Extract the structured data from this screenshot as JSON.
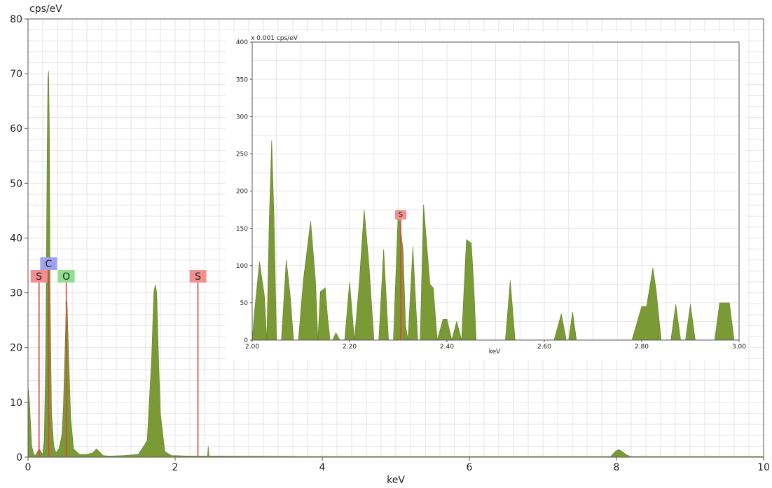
{
  "chart_data": [
    {
      "type": "area",
      "ylabel": "cps/eV",
      "xlabel": "keV",
      "xlim": [
        0,
        10
      ],
      "ylim": [
        0,
        80
      ],
      "x_ticks": [
        0,
        2,
        4,
        6,
        8,
        10
      ],
      "y_ticks": [
        0,
        10,
        20,
        30,
        40,
        50,
        60,
        70,
        80
      ],
      "grid": true,
      "series": [
        {
          "x": [
            0.0,
            0.02,
            0.05,
            0.08,
            0.1,
            0.15,
            0.2,
            0.22,
            0.24,
            0.26,
            0.27,
            0.28,
            0.29,
            0.3,
            0.32,
            0.35,
            0.38,
            0.42,
            0.46,
            0.48,
            0.5,
            0.52,
            0.53,
            0.55,
            0.58,
            0.62,
            0.7,
            0.8,
            0.88,
            0.93,
            0.97,
            1.02,
            1.1,
            1.3,
            1.5,
            1.62,
            1.68,
            1.71,
            1.73,
            1.75,
            1.77,
            1.8,
            1.86,
            1.95,
            2.2,
            2.44,
            2.45,
            2.46,
            2.6,
            4.0,
            6.0,
            7.92,
            7.98,
            8.03,
            8.08,
            8.14,
            8.2,
            9.0,
            10.0
          ],
          "y": [
            13.0,
            10.0,
            2.0,
            0.5,
            0.3,
            1.5,
            0.5,
            3.0,
            18.0,
            55.0,
            69.0,
            70.5,
            60.0,
            30.0,
            8.0,
            2.0,
            0.8,
            1.5,
            4.0,
            9.0,
            18.0,
            28.0,
            28.5,
            20.0,
            7.0,
            1.5,
            0.5,
            0.5,
            0.8,
            1.5,
            1.0,
            0.3,
            0.2,
            0.3,
            0.5,
            3.0,
            18.0,
            30.0,
            31.5,
            30.0,
            20.0,
            8.0,
            1.0,
            0.3,
            0.2,
            0.2,
            2.0,
            0.2,
            0.2,
            0.1,
            0.1,
            0.1,
            1.0,
            1.4,
            1.0,
            0.4,
            0.1,
            0.1,
            0.1
          ]
        }
      ],
      "element_markers": [
        {
          "label": "S",
          "x": 0.15,
          "color": "#f1908e",
          "line_color": "#e0403e"
        },
        {
          "label": "C",
          "x": 0.28,
          "color": "#9da3ee",
          "line_color": "#e0403e"
        },
        {
          "label": "O",
          "x": 0.52,
          "color": "#8ee08e",
          "line_color": "#e0403e"
        },
        {
          "label": "S",
          "x": 2.31,
          "color": "#f1908e",
          "line_color": "#e0403e"
        }
      ]
    },
    {
      "type": "area",
      "ylabel": "x 0.001 cps/eV",
      "xlabel": "keV",
      "xlim": [
        2.0,
        3.0
      ],
      "ylim": [
        0,
        400
      ],
      "x_ticks": [
        "2.00",
        "2.20",
        "2.40",
        "2.60",
        "2.80",
        "3.00"
      ],
      "y_ticks": [
        0,
        50,
        100,
        150,
        200,
        250,
        300,
        350,
        400
      ],
      "grid": true,
      "series": [
        {
          "x": [
            2.0,
            2.005,
            2.015,
            2.025,
            2.03,
            2.035,
            2.04,
            2.045,
            2.05,
            2.06,
            2.07,
            2.078,
            2.085,
            2.095,
            2.105,
            2.12,
            2.13,
            2.135,
            2.14,
            2.15,
            2.155,
            2.16,
            2.165,
            2.172,
            2.18,
            2.19,
            2.2,
            2.21,
            2.22,
            2.23,
            2.24,
            2.25,
            2.26,
            2.27,
            2.28,
            2.29,
            2.3,
            2.31,
            2.315,
            2.32,
            2.33,
            2.335,
            2.34,
            2.345,
            2.352,
            2.365,
            2.372,
            2.38,
            2.392,
            2.4,
            2.41,
            2.42,
            2.43,
            2.44,
            2.45,
            2.455,
            2.46,
            2.465,
            2.47,
            2.48,
            2.5,
            2.52,
            2.53,
            2.54,
            2.55,
            2.6,
            2.62,
            2.635,
            2.645,
            2.65,
            2.658,
            2.666,
            2.7,
            2.78,
            2.8,
            2.81,
            2.823,
            2.83,
            2.84,
            2.85,
            2.86,
            2.87,
            2.88,
            2.89,
            2.9,
            2.91,
            2.95,
            2.96,
            2.97,
            2.98,
            2.99,
            3.0
          ],
          "y": [
            0,
            40,
            105,
            60,
            0,
            160,
            268,
            160,
            0,
            0,
            108,
            60,
            0,
            0,
            80,
            160,
            80,
            0,
            65,
            70,
            30,
            0,
            0,
            10,
            0,
            0,
            78,
            0,
            78,
            175,
            100,
            0,
            0,
            122,
            0,
            0,
            175,
            120,
            20,
            0,
            125,
            60,
            0,
            0,
            182,
            75,
            70,
            0,
            28,
            28,
            0,
            25,
            0,
            135,
            130,
            75,
            0,
            0,
            0,
            0,
            0,
            0,
            80,
            0,
            0,
            0,
            0,
            35,
            0,
            0,
            38,
            0,
            0,
            0,
            45,
            45,
            97,
            65,
            0,
            0,
            0,
            48,
            0,
            0,
            48,
            0,
            0,
            50,
            50,
            50,
            0,
            0
          ]
        }
      ],
      "element_markers": [
        {
          "label": "S",
          "x": 2.305,
          "color": "#f1908e",
          "line_color": "#e0403e"
        }
      ]
    }
  ]
}
